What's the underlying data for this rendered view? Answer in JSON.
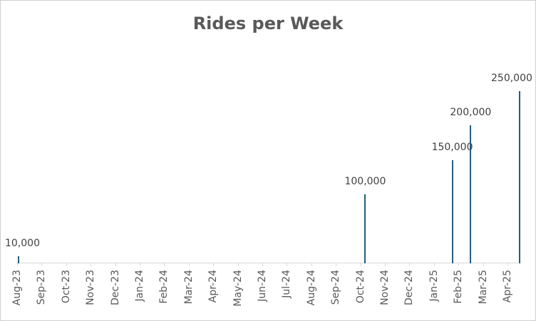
{
  "chart_data": {
    "type": "bar",
    "title": "Rides per Week",
    "categories": [
      "Aug-23",
      "Sep-23",
      "Oct-23",
      "Nov-23",
      "Dec-23",
      "Jan-24",
      "Feb-24",
      "Mar-24",
      "Apr-24",
      "May-24",
      "Jun-24",
      "Jul-24",
      "Aug-24",
      "Sep-24",
      "Oct-24",
      "Nov-24",
      "Dec-24",
      "Jan-25",
      "Feb-25",
      "Mar-25",
      "Apr-25"
    ],
    "points": [
      {
        "nearest_month": "Aug-23",
        "x_month_index": 0.06,
        "value": 10000,
        "label": "10,000"
      },
      {
        "nearest_month": "Oct-24",
        "x_month_index": 14.2,
        "value": 100000,
        "label": "100,000"
      },
      {
        "nearest_month": "Jan-25",
        "x_month_index": 17.75,
        "value": 150000,
        "label": "150,000"
      },
      {
        "nearest_month": "Feb-25",
        "x_month_index": 18.5,
        "value": 200000,
        "label": "200,000"
      },
      {
        "nearest_month": "Apr-25",
        "x_month_index": 20.5,
        "value": 250000,
        "label": "250,000"
      }
    ],
    "ylim": [
      0,
      250000
    ],
    "x_axis_span_month_indices": [
      0,
      20.5
    ],
    "y_axis_visible": false,
    "gridlines": false,
    "legend": "none",
    "data_labels_visible": true,
    "colors": {
      "bar": "#255e7e",
      "axis_line": "#d9d9d9",
      "title_text": "#595959",
      "axis_label_text": "#595959",
      "data_label_text": "#3f3f3f",
      "background": "#ffffff",
      "canvas_border": "#cfcfcf"
    }
  }
}
